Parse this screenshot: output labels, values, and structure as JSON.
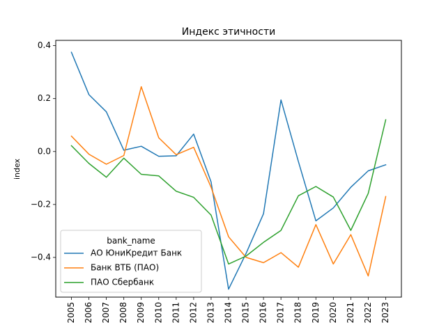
{
  "chart_data": {
    "type": "line",
    "title": "Индекс этичности",
    "xlabel": "",
    "ylabel": "index",
    "x": [
      "2005",
      "2006",
      "2007",
      "2008",
      "2009",
      "2010",
      "2011",
      "2012",
      "2013",
      "2014",
      "2015",
      "2016",
      "2017",
      "2018",
      "2019",
      "2020",
      "2021",
      "2022",
      "2023"
    ],
    "ylim": [
      -0.55,
      0.42
    ],
    "yticks": [
      -0.4,
      -0.2,
      0.0,
      0.2,
      0.4
    ],
    "ytick_labels": [
      "−0.4",
      "−0.2",
      "0.0",
      "0.2",
      "0.4"
    ],
    "grid": false,
    "legend": {
      "title": "bank_name",
      "position": "lower-left"
    },
    "series": [
      {
        "name": "АО ЮниКредит Банк",
        "color": "#1f77b4",
        "values": [
          0.375,
          0.215,
          0.15,
          0.005,
          0.02,
          -0.018,
          -0.016,
          0.066,
          -0.115,
          -0.52,
          -0.385,
          -0.235,
          0.195,
          -0.038,
          -0.262,
          -0.213,
          -0.135,
          -0.073,
          -0.05
        ]
      },
      {
        "name": "Банк ВТБ (ПАО)",
        "color": "#ff7f0e",
        "values": [
          0.058,
          -0.01,
          -0.048,
          -0.015,
          0.245,
          0.052,
          -0.012,
          0.016,
          -0.135,
          -0.322,
          -0.4,
          -0.42,
          -0.382,
          -0.437,
          -0.276,
          -0.425,
          -0.314,
          -0.47,
          -0.17
        ]
      },
      {
        "name": "ПАО Сбербанк",
        "color": "#2ca02c",
        "values": [
          0.022,
          -0.045,
          -0.097,
          -0.025,
          -0.086,
          -0.092,
          -0.15,
          -0.173,
          -0.24,
          -0.425,
          -0.395,
          -0.343,
          -0.298,
          -0.167,
          -0.132,
          -0.172,
          -0.298,
          -0.158,
          0.12
        ]
      }
    ]
  }
}
